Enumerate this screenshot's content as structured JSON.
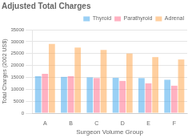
{
  "chart_data": {
    "type": "bar",
    "title": "Adjusted Total Charges",
    "xlabel": "Surgeon Volume Group",
    "ylabel": "Total Charges (2002 US$)",
    "categories": [
      "A",
      "B",
      "C",
      "D",
      "E",
      "F"
    ],
    "series": [
      {
        "name": "Thyroid",
        "values": [
          15500,
          15200,
          15000,
          14800,
          14700,
          14000
        ]
      },
      {
        "name": "Parathyroid",
        "values": [
          16500,
          15500,
          14700,
          13500,
          12500,
          11500
        ]
      },
      {
        "name": "Adrenal",
        "values": [
          29000,
          27500,
          26500,
          25000,
          23500,
          22500
        ]
      }
    ],
    "ylim": [
      0,
      35000
    ],
    "yticks": [
      0,
      5000,
      10000,
      15000,
      20000,
      25000,
      30000,
      35000
    ],
    "grid": true,
    "legend": "upper right"
  }
}
